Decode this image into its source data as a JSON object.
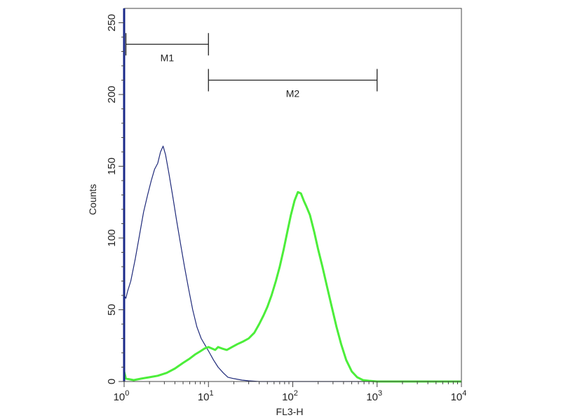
{
  "chart_data": {
    "type": "line",
    "title": "",
    "xlabel": "FL3-H",
    "ylabel": "Counts",
    "x_scale": "log",
    "xlim": [
      1,
      10000
    ],
    "ylim": [
      0,
      260
    ],
    "x_ticks": [
      {
        "value": 1,
        "base": "10",
        "exp": "0"
      },
      {
        "value": 10,
        "base": "10",
        "exp": "1"
      },
      {
        "value": 100,
        "base": "10",
        "exp": "2"
      },
      {
        "value": 1000,
        "base": "10",
        "exp": "3"
      },
      {
        "value": 10000,
        "base": "10",
        "exp": "4"
      }
    ],
    "y_ticks": [
      {
        "value": 0,
        "label": "0"
      },
      {
        "value": 50,
        "label": "50"
      },
      {
        "value": 100,
        "label": "100"
      },
      {
        "value": 150,
        "label": "150"
      },
      {
        "value": 200,
        "label": "200"
      },
      {
        "value": 250,
        "label": "250"
      }
    ],
    "grid": false,
    "markers": [
      {
        "label": "M1",
        "x_start": 1.05,
        "x_end": 10,
        "y": 235
      },
      {
        "label": "M2",
        "x_start": 10,
        "x_end": 1000,
        "y": 210
      }
    ],
    "series": [
      {
        "color": "#1f2a7a",
        "points": [
          [
            1.0,
            60
          ],
          [
            1.05,
            58
          ],
          [
            1.1,
            63
          ],
          [
            1.2,
            70
          ],
          [
            1.35,
            85
          ],
          [
            1.5,
            100
          ],
          [
            1.7,
            118
          ],
          [
            1.9,
            130
          ],
          [
            2.1,
            140
          ],
          [
            2.3,
            148
          ],
          [
            2.5,
            152
          ],
          [
            2.7,
            160
          ],
          [
            2.9,
            164
          ],
          [
            3.1,
            158
          ],
          [
            3.4,
            145
          ],
          [
            3.8,
            128
          ],
          [
            4.2,
            112
          ],
          [
            4.7,
            95
          ],
          [
            5.2,
            80
          ],
          [
            5.8,
            65
          ],
          [
            6.5,
            50
          ],
          [
            7.3,
            38
          ],
          [
            8.2,
            30
          ],
          [
            9.2,
            25
          ],
          [
            10.3,
            20
          ],
          [
            11.5,
            15
          ],
          [
            13,
            10
          ],
          [
            15,
            6
          ],
          [
            17,
            3
          ],
          [
            20,
            2
          ],
          [
            25,
            1
          ],
          [
            30,
            0.5
          ],
          [
            40,
            0
          ],
          [
            100,
            0
          ],
          [
            1000,
            0
          ],
          [
            10000,
            0
          ]
        ]
      },
      {
        "color": "#4cee3a",
        "points": [
          [
            1.0,
            7
          ],
          [
            1.05,
            2
          ],
          [
            1.3,
            1
          ],
          [
            1.6,
            2
          ],
          [
            2.0,
            3
          ],
          [
            2.5,
            4
          ],
          [
            3.2,
            6
          ],
          [
            4.0,
            9
          ],
          [
            5.0,
            13
          ],
          [
            6.0,
            16
          ],
          [
            7.0,
            19
          ],
          [
            8.0,
            21
          ],
          [
            9.0,
            23
          ],
          [
            10.0,
            24
          ],
          [
            11.0,
            23
          ],
          [
            12.0,
            22
          ],
          [
            13.0,
            24
          ],
          [
            14.5,
            23
          ],
          [
            16.5,
            22
          ],
          [
            19,
            24
          ],
          [
            22,
            26
          ],
          [
            26,
            28
          ],
          [
            30,
            30
          ],
          [
            35,
            34
          ],
          [
            40,
            40
          ],
          [
            45,
            46
          ],
          [
            50,
            52
          ],
          [
            56,
            60
          ],
          [
            63,
            70
          ],
          [
            70,
            80
          ],
          [
            78,
            92
          ],
          [
            86,
            104
          ],
          [
            95,
            116
          ],
          [
            105,
            126
          ],
          [
            115,
            132
          ],
          [
            125,
            131
          ],
          [
            135,
            126
          ],
          [
            145,
            122
          ],
          [
            160,
            116
          ],
          [
            180,
            104
          ],
          [
            200,
            92
          ],
          [
            225,
            80
          ],
          [
            255,
            66
          ],
          [
            290,
            52
          ],
          [
            330,
            38
          ],
          [
            375,
            26
          ],
          [
            430,
            15
          ],
          [
            500,
            7
          ],
          [
            580,
            3
          ],
          [
            680,
            1
          ],
          [
            800,
            0.5
          ],
          [
            1000,
            0
          ],
          [
            10000,
            0
          ]
        ]
      }
    ]
  }
}
